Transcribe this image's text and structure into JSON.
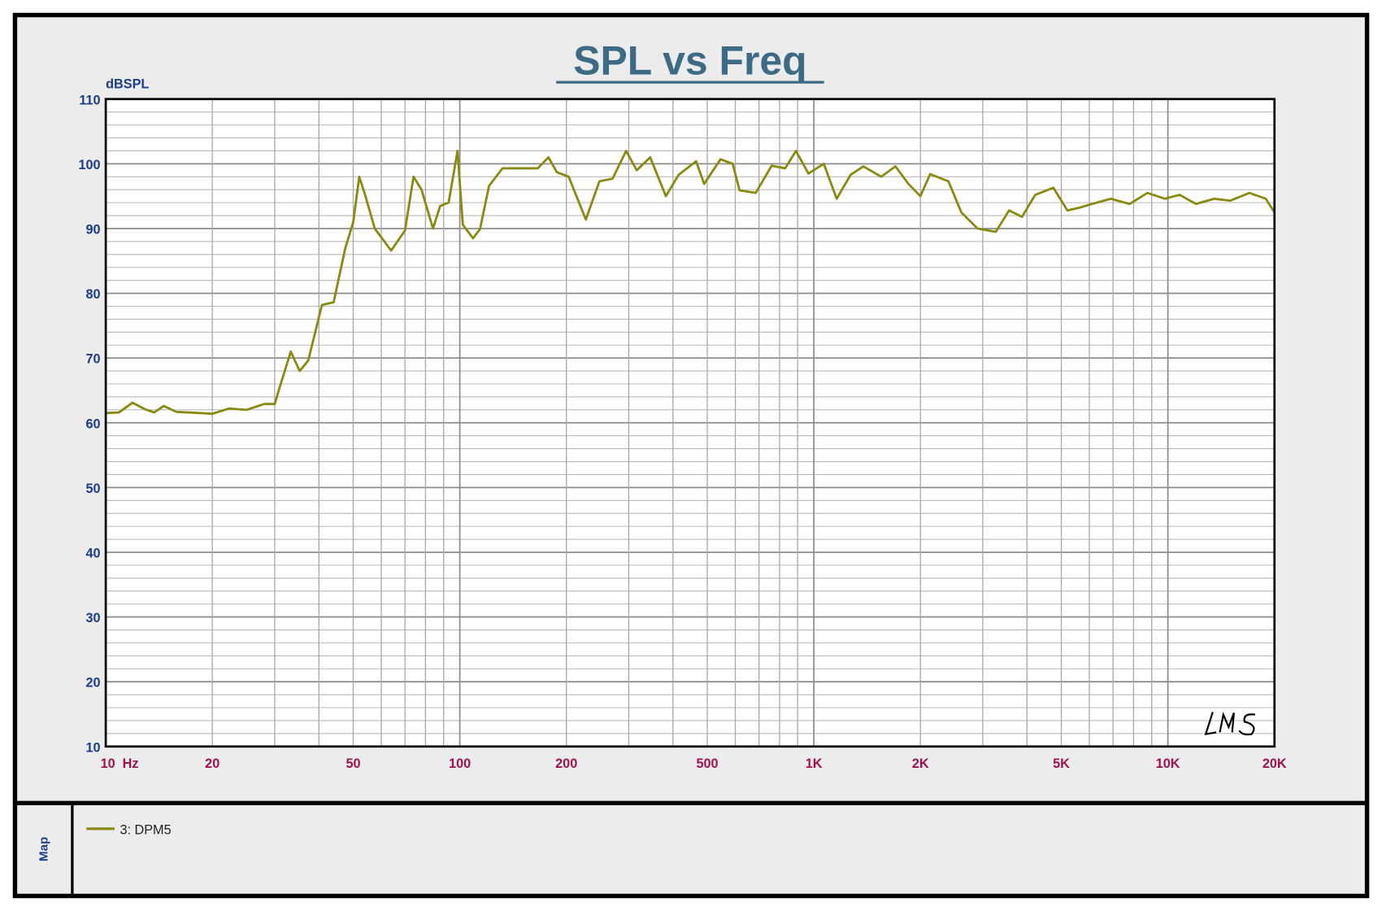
{
  "chart_data": {
    "type": "line",
    "title": "SPL vs Freq",
    "ylabel": "dBSPL",
    "xlabel": "",
    "x_scale": "log",
    "xlim": [
      10,
      20000
    ],
    "ylim": [
      10,
      110
    ],
    "grid": true,
    "y_ticks": [
      "10",
      "20",
      "30",
      "40",
      "50",
      "60",
      "70",
      "80",
      "90",
      "100",
      "110"
    ],
    "x_ticks": [
      {
        "value": 10,
        "label": "10  Hz"
      },
      {
        "value": 20,
        "label": "20"
      },
      {
        "value": 50,
        "label": "50"
      },
      {
        "value": 100,
        "label": "100"
      },
      {
        "value": 200,
        "label": "200"
      },
      {
        "value": 500,
        "label": "500"
      },
      {
        "value": 1000,
        "label": "1K"
      },
      {
        "value": 2000,
        "label": "2K"
      },
      {
        "value": 5000,
        "label": "5K"
      },
      {
        "value": 10000,
        "label": "10K"
      },
      {
        "value": 20000,
        "label": "20K"
      }
    ],
    "legend_position": "bottom panel",
    "series": [
      {
        "name": "3: DPM5",
        "color": "#8a8a12",
        "x": [
          10,
          10.9,
          11.9,
          12.9,
          13.7,
          14.6,
          15.8,
          20,
          22.3,
          25,
          28,
          30,
          31,
          33.3,
          35.3,
          37.3,
          40.8,
          44,
          47.5,
          50,
          52,
          54,
          57.5,
          64,
          70,
          74,
          78,
          84,
          88,
          93,
          98.5,
          102,
          109,
          114,
          121,
          132,
          149,
          166,
          178,
          188,
          203,
          227,
          248,
          270,
          295,
          316,
          345,
          382,
          415,
          465,
          490,
          545,
          590,
          617,
          685,
          760,
          830,
          890,
          965,
          1067,
          1160,
          1270,
          1380,
          1550,
          1700,
          1850,
          2000,
          2130,
          2400,
          2610,
          2900,
          3265,
          3560,
          3870,
          4220,
          4750,
          5200,
          5610,
          6100,
          6900,
          7800,
          8750,
          9800,
          10800,
          12000,
          13500,
          15000,
          17000,
          18900,
          20000
        ],
        "y": [
          61.5,
          61.6,
          63.1,
          62.1,
          61.6,
          62.6,
          61.7,
          61.4,
          62.2,
          62,
          62.9,
          62.9,
          65.5,
          71,
          68,
          69.6,
          78.2,
          78.6,
          87,
          91,
          98,
          95.2,
          90,
          86.6,
          89.7,
          98,
          96,
          90,
          93.5,
          94,
          102,
          90.6,
          88.5,
          89.9,
          96.6,
          99.3,
          99.3,
          99.3,
          101,
          98.7,
          98,
          91.4,
          97.3,
          97.7,
          102,
          99,
          101,
          95,
          98.3,
          100.4,
          96.9,
          100.7,
          100,
          95.9,
          95.5,
          99.7,
          99.3,
          102,
          98.5,
          100,
          94.6,
          98.3,
          99.6,
          98,
          99.6,
          96.9,
          95,
          98.4,
          97.3,
          92.5,
          90,
          89.5,
          92.8,
          91.8,
          95.2,
          96.3,
          92.8,
          93.2,
          93.8,
          94.6,
          93.8,
          95.5,
          94.6,
          95.2,
          93.8,
          94.6,
          94.3,
          95.5,
          94.6,
          92.5
        ]
      }
    ]
  },
  "legend_panel": {
    "tab_label": "Map",
    "entries": [
      "3: DPM5"
    ]
  },
  "watermark": "LMS",
  "colors": {
    "background": "#ececec",
    "title": "#3d6a85",
    "y_labels": "#1b3c8c",
    "x_labels": "#a0124e",
    "grid": "#9a9a9a"
  }
}
